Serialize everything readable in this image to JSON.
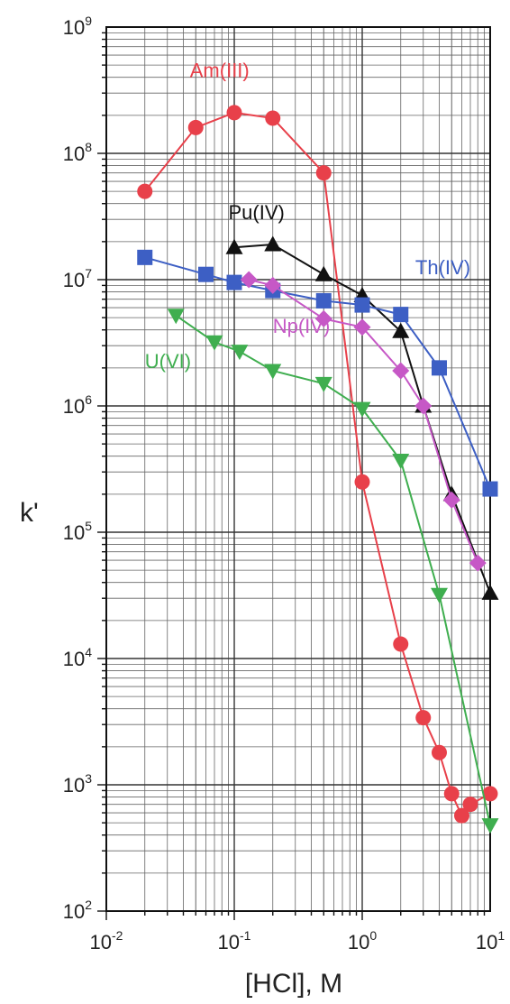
{
  "chart_data": {
    "type": "line",
    "title": "",
    "xlabel": "[HCl], M",
    "ylabel": "k'",
    "x_scale": "log",
    "y_scale": "log",
    "xlim": [
      0.01,
      10
    ],
    "ylim": [
      100,
      1000000000
    ],
    "grid": true,
    "x_ticks": [
      {
        "base": "10",
        "exp": "-2",
        "value": 0.01
      },
      {
        "base": "10",
        "exp": "-1",
        "value": 0.1
      },
      {
        "base": "10",
        "exp": "0",
        "value": 1
      },
      {
        "base": "10",
        "exp": "1",
        "value": 10
      }
    ],
    "y_ticks": [
      {
        "base": "10",
        "exp": "2",
        "value": 100
      },
      {
        "base": "10",
        "exp": "3",
        "value": 1000
      },
      {
        "base": "10",
        "exp": "4",
        "value": 10000
      },
      {
        "base": "10",
        "exp": "5",
        "value": 100000
      },
      {
        "base": "10",
        "exp": "6",
        "value": 1000000
      },
      {
        "base": "10",
        "exp": "7",
        "value": 10000000
      },
      {
        "base": "10",
        "exp": "8",
        "value": 100000000
      },
      {
        "base": "10",
        "exp": "9",
        "value": 1000000000
      }
    ],
    "series": [
      {
        "name": "Am(III)",
        "color": "#e8404a",
        "marker": "circle",
        "x": [
          0.02,
          0.05,
          0.1,
          0.2,
          0.5,
          1,
          2,
          3,
          4,
          5,
          6,
          7,
          10
        ],
        "y": [
          50000000,
          160000000,
          210000000,
          190000000,
          70000000,
          250000,
          13000,
          3400,
          1800,
          850,
          570,
          700,
          850
        ]
      },
      {
        "name": "Pu(IV)",
        "color": "#111111",
        "marker": "triangle-up",
        "x": [
          0.1,
          0.2,
          0.5,
          1,
          2,
          3,
          5,
          10
        ],
        "y": [
          18000000,
          19000000,
          11000000,
          7500000,
          3900000,
          1000000,
          200000,
          33000
        ]
      },
      {
        "name": "Th(IV)",
        "color": "#3d5fc4",
        "marker": "square",
        "x": [
          0.02,
          0.06,
          0.1,
          0.2,
          0.5,
          1,
          2,
          4,
          10
        ],
        "y": [
          15000000,
          11000000,
          9500000,
          8200000,
          6800000,
          6300000,
          5300000,
          2000000,
          220000
        ]
      },
      {
        "name": "Np(IV)",
        "color": "#c658c6",
        "marker": "diamond",
        "x": [
          0.13,
          0.2,
          0.5,
          1,
          2,
          3,
          5,
          8
        ],
        "y": [
          10000000,
          9000000,
          4900000,
          4200000,
          1900000,
          1000000,
          180000,
          57000
        ]
      },
      {
        "name": "U(VI)",
        "color": "#3fae4f",
        "marker": "triangle-down",
        "x": [
          0.035,
          0.07,
          0.11,
          0.2,
          0.5,
          1,
          2,
          4,
          10
        ],
        "y": [
          5200000,
          3200000,
          2700000,
          1900000,
          1500000,
          950000,
          370000,
          32000,
          480
        ]
      }
    ]
  }
}
